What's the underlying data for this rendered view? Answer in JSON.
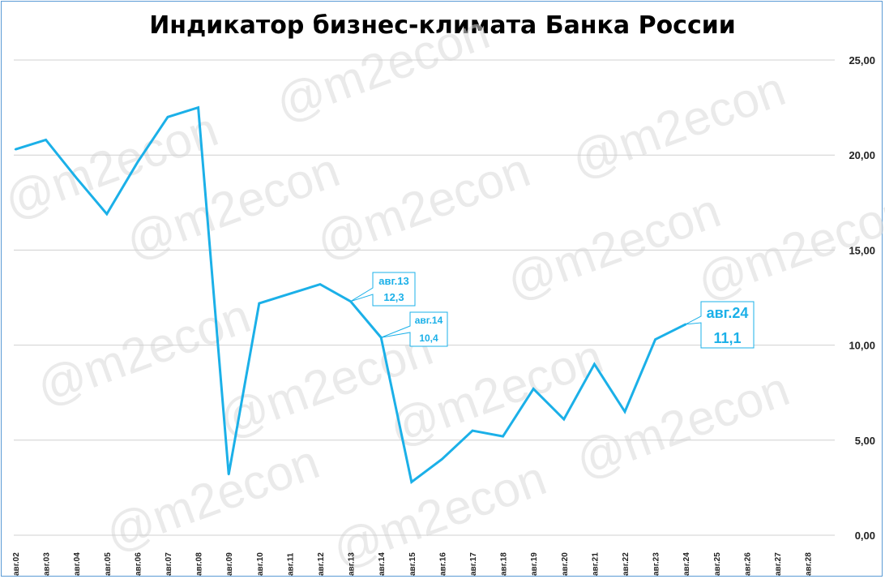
{
  "chart_data": {
    "type": "line",
    "title": "Индикатор бизнес-климата Банка России",
    "xlabel": "",
    "ylabel": "",
    "ylim": [
      0,
      25
    ],
    "y_ticks": [
      "0,00",
      "5,00",
      "10,00",
      "15,00",
      "20,00",
      "25,00"
    ],
    "y_axis_side": "right",
    "grid": true,
    "categories": [
      "авг.02",
      "авг.03",
      "авг.04",
      "авг.05",
      "авг.06",
      "авг.07",
      "авг.08",
      "авг.09",
      "авг.10",
      "авг.11",
      "авг.12",
      "авг.13",
      "авг.14",
      "авг.15",
      "авг.16",
      "авг.17",
      "авг.18",
      "авг.19",
      "авг.20",
      "авг.21",
      "авг.22",
      "авг.23",
      "авг.24",
      "авг.25",
      "авг.26",
      "авг.27",
      "авг.28"
    ],
    "series": [
      {
        "color": "#1bb0e8",
        "values": [
          20.3,
          20.8,
          18.8,
          16.9,
          19.6,
          22.0,
          22.5,
          3.2,
          12.2,
          12.7,
          13.2,
          12.3,
          10.4,
          2.8,
          4.0,
          5.5,
          5.2,
          7.7,
          6.1,
          9.0,
          6.5,
          10.3,
          11.1,
          null,
          null,
          null,
          null
        ]
      }
    ],
    "annotations": [
      {
        "category": "авг.13",
        "line1": "авг.13",
        "line2": "12,3",
        "size": "small"
      },
      {
        "category": "авг.14",
        "line1": "авг.14",
        "line2": "10,4",
        "size": "small"
      },
      {
        "category": "авг.24",
        "line1": "авг.24",
        "line2": "11,1",
        "size": "large"
      }
    ],
    "watermark": "@m2econ"
  }
}
